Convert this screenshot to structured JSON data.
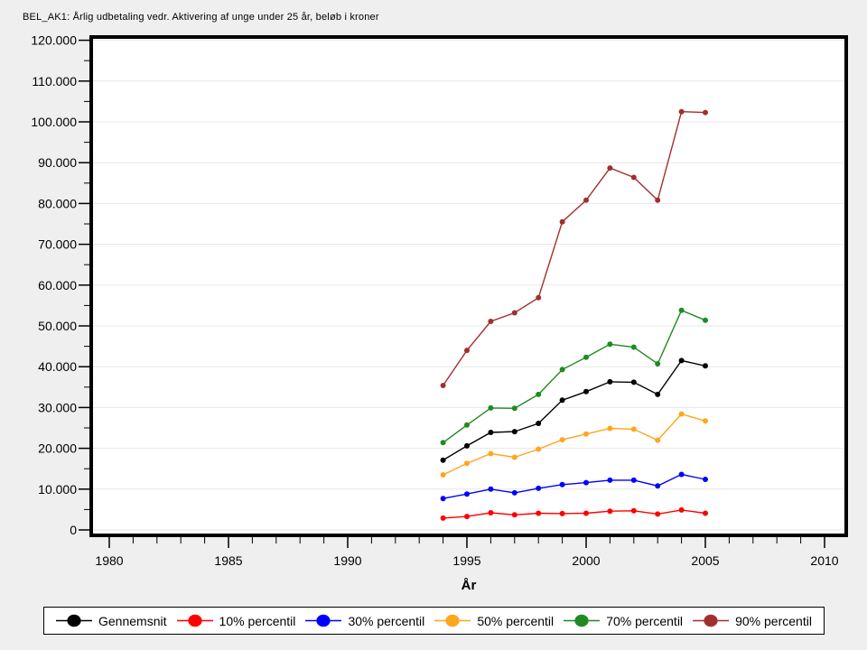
{
  "chart_data": {
    "type": "line",
    "title": "BEL_AK1: Årlig udbetaling vedr. Aktivering af unge under 25 år, beløb i kroner",
    "xlabel": "År",
    "ylabel": "",
    "background": "#EFEFEF",
    "plot_background": "#FFFFFF",
    "grid": "horizontal",
    "gridline_color": "#E7E7E7",
    "legend_position": "bottom",
    "xlim": [
      1979.3,
      2010.9
    ],
    "ylim": [
      0,
      120000
    ],
    "x_axis": {
      "major_ticks": [
        1980,
        1985,
        1990,
        1995,
        2000,
        2005,
        2010
      ],
      "tick_labels": [
        "1980",
        "1985",
        "1990",
        "1995",
        "2000",
        "2005",
        "2010"
      ],
      "minor_step": 1
    },
    "y_axis": {
      "major_ticks": [
        0,
        10000,
        20000,
        30000,
        40000,
        50000,
        60000,
        70000,
        80000,
        90000,
        100000,
        110000,
        120000
      ],
      "tick_labels": [
        "0",
        "10.000",
        "20.000",
        "30.000",
        "40.000",
        "50.000",
        "60.000",
        "70.000",
        "80.000",
        "90.000",
        "100.000",
        "110.000",
        "120.000"
      ],
      "major_step": 10000,
      "minor_step": 5000
    },
    "x": [
      1994,
      1995,
      1996,
      1997,
      1998,
      1999,
      2000,
      2001,
      2002,
      2003,
      2004,
      2005
    ],
    "series": [
      {
        "name": "Gennemsnit",
        "color": "#000000",
        "values": [
          17100,
          20600,
          23900,
          24100,
          26100,
          31800,
          33900,
          36300,
          36200,
          33200,
          41500,
          40200
        ]
      },
      {
        "name": "10% percentil",
        "color": "#FF0000",
        "values": [
          2900,
          3300,
          4200,
          3700,
          4100,
          4000,
          4100,
          4600,
          4700,
          3900,
          4900,
          4100
        ]
      },
      {
        "name": "30% percentil",
        "color": "#0000FF",
        "values": [
          7700,
          8800,
          10000,
          9100,
          10200,
          11100,
          11600,
          12200,
          12200,
          10800,
          13600,
          12400
        ]
      },
      {
        "name": "50% percentil",
        "color": "#FFA51E",
        "values": [
          13500,
          16300,
          18700,
          17800,
          19800,
          22100,
          23500,
          24900,
          24700,
          22000,
          28400,
          26700
        ]
      },
      {
        "name": "70% percentil",
        "color": "#1F8B1F",
        "values": [
          21400,
          25700,
          29900,
          29800,
          33200,
          39300,
          42300,
          45500,
          44800,
          40700,
          53800,
          51400
        ]
      },
      {
        "name": "90% percentil",
        "color": "#A22F2F",
        "values": [
          35400,
          44000,
          51100,
          53200,
          56900,
          75500,
          80800,
          88700,
          86400,
          80800,
          102500,
          102300
        ]
      }
    ]
  }
}
